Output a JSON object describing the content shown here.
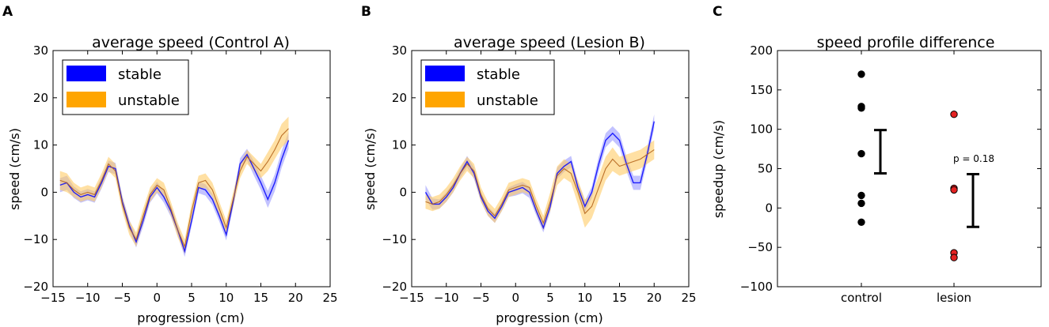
{
  "chart_data": [
    {
      "panel_label": "A",
      "type": "line",
      "title": "average speed (Control A)",
      "xlabel": "progression (cm)",
      "ylabel": "speed (cm/s)",
      "xlim": [
        -15,
        25
      ],
      "ylim": [
        -20,
        30
      ],
      "xticks": [
        -15,
        -10,
        -5,
        0,
        5,
        10,
        15,
        20,
        25
      ],
      "yticks": [
        -20,
        -10,
        0,
        10,
        20,
        30
      ],
      "legend_position": "top-left",
      "series": [
        {
          "name": "stable",
          "color": "#0000ff",
          "band_color": "#9999ff",
          "x": [
            -14,
            -13,
            -12,
            -11,
            -10,
            -9,
            -8,
            -7,
            -6,
            -5,
            -4,
            -3,
            -2,
            -1,
            0,
            1,
            2,
            3,
            4,
            5,
            6,
            7,
            8,
            9,
            10,
            11,
            12,
            13,
            14,
            15,
            16,
            17,
            18,
            19
          ],
          "y": [
            1.5,
            2,
            0,
            -1,
            -0.5,
            -1,
            2,
            5.5,
            5,
            -2,
            -7,
            -10.5,
            -6,
            -1,
            1,
            -1,
            -4,
            -8,
            -12.5,
            -6,
            1,
            0.5,
            -1.5,
            -5,
            -9,
            -2,
            6,
            8,
            5,
            2,
            -1.5,
            2,
            7,
            11
          ],
          "err": [
            1.5,
            1.5,
            1.2,
            1.2,
            1.2,
            1.2,
            1.2,
            1.2,
            1.2,
            1.2,
            1.2,
            1.2,
            1.2,
            1.2,
            1.2,
            1.2,
            1.2,
            1.2,
            1.2,
            1.2,
            1.2,
            1.2,
            1.2,
            1.2,
            1.2,
            1.2,
            1.2,
            1.2,
            1.5,
            1.5,
            1.8,
            1.8,
            1.8,
            1.8
          ]
        },
        {
          "name": "unstable",
          "color": "#ffa500",
          "band_color": "#ffcc66",
          "x": [
            -14,
            -13,
            -12,
            -11,
            -10,
            -9,
            -8,
            -7,
            -6,
            -5,
            -4,
            -3,
            -2,
            -1,
            0,
            1,
            2,
            3,
            4,
            5,
            6,
            7,
            8,
            9,
            10,
            11,
            12,
            13,
            14,
            15,
            16,
            17,
            18,
            19
          ],
          "y": [
            2.5,
            2,
            0.5,
            -0.5,
            0,
            -0.5,
            2.5,
            6,
            4.5,
            -2.5,
            -7.5,
            -10,
            -5,
            -0.5,
            1.5,
            0.5,
            -3.5,
            -8,
            -11.5,
            -4,
            2,
            2.5,
            0.5,
            -3.5,
            -7.5,
            -1.5,
            4.5,
            7.5,
            6,
            4.5,
            6.5,
            9,
            12,
            13.5
          ],
          "err": [
            2,
            2,
            1.5,
            1.5,
            1.5,
            1.5,
            1.5,
            1.5,
            1.5,
            1.5,
            1.5,
            1.5,
            1.5,
            1.5,
            1.5,
            1.5,
            1.5,
            1.5,
            1.5,
            1.5,
            1.5,
            1.5,
            1.5,
            1.5,
            1.5,
            1.5,
            1.5,
            1.5,
            1.5,
            1.5,
            2,
            2,
            2.5,
            2.5
          ]
        }
      ]
    },
    {
      "panel_label": "B",
      "type": "line",
      "title": "average speed (Lesion B)",
      "xlabel": "progression (cm)",
      "ylabel": "speed (cm/s)",
      "xlim": [
        -15,
        25
      ],
      "ylim": [
        -20,
        30
      ],
      "xticks": [
        -15,
        -10,
        -5,
        0,
        5,
        10,
        15,
        20,
        25
      ],
      "yticks": [
        -20,
        -10,
        0,
        10,
        20,
        30
      ],
      "legend_position": "top-left",
      "series": [
        {
          "name": "stable",
          "color": "#0000ff",
          "band_color": "#9999ff",
          "x": [
            -13,
            -12,
            -11,
            -10,
            -9,
            -8,
            -7,
            -6,
            -5,
            -4,
            -3,
            -2,
            -1,
            0,
            1,
            2,
            3,
            4,
            5,
            6,
            7,
            8,
            9,
            10,
            11,
            12,
            13,
            14,
            15,
            16,
            17,
            18,
            19,
            20
          ],
          "y": [
            0,
            -2.5,
            -2.5,
            -1,
            1,
            4,
            6.5,
            4,
            -1,
            -4,
            -5.5,
            -3,
            0,
            0.5,
            1,
            0,
            -4,
            -7.5,
            -3,
            4,
            5.5,
            6.5,
            1,
            -3,
            0,
            6,
            11,
            12.5,
            11,
            6,
            2,
            2,
            8,
            15
          ],
          "err": [
            1.5,
            1.2,
            1,
            1,
            1,
            1,
            1.2,
            1.2,
            1,
            1,
            1,
            1,
            1,
            1.2,
            1.2,
            1.2,
            1,
            1,
            1.2,
            1.2,
            1.2,
            1.2,
            1.2,
            1.2,
            1.2,
            1.5,
            1.5,
            1.5,
            1.5,
            1.5,
            1.5,
            1.5,
            1.5,
            1.5
          ]
        },
        {
          "name": "unstable",
          "color": "#ffa500",
          "band_color": "#ffcc66",
          "x": [
            -13,
            -12,
            -11,
            -10,
            -9,
            -8,
            -7,
            -6,
            -5,
            -4,
            -3,
            -2,
            -1,
            0,
            1,
            2,
            3,
            4,
            5,
            6,
            7,
            8,
            9,
            10,
            11,
            12,
            13,
            14,
            15,
            16,
            17,
            18,
            19,
            20
          ],
          "y": [
            -2,
            -2.5,
            -2,
            -0.5,
            1.5,
            4,
            6,
            4.5,
            -0.5,
            -3.5,
            -5,
            -2.5,
            0.5,
            1,
            1.5,
            1,
            -3,
            -6.5,
            -2,
            3.5,
            5,
            4,
            0,
            -4.5,
            -3,
            1,
            5,
            7,
            5.5,
            6,
            6.5,
            7,
            8,
            9
          ],
          "err": [
            1.5,
            1.5,
            1.5,
            1.5,
            1.5,
            1.5,
            1.5,
            1.5,
            1.5,
            1.5,
            1.5,
            1.5,
            1.5,
            1.5,
            1.5,
            1.5,
            1.5,
            1.5,
            2,
            2,
            2,
            2,
            2.5,
            3,
            2.5,
            2.5,
            2.5,
            2.5,
            2,
            2,
            2,
            2,
            2,
            2
          ]
        }
      ]
    },
    {
      "panel_label": "C",
      "type": "scatter",
      "title": "speed profile difference",
      "xlabel": "",
      "ylabel": "speedup (cm/s)",
      "categories": [
        "control",
        "lesion"
      ],
      "ylim": [
        -100,
        200
      ],
      "yticks": [
        -100,
        -50,
        0,
        50,
        100,
        150,
        200
      ],
      "groups": [
        {
          "name": "control",
          "color": "#000000",
          "points": [
            170,
            129,
            127,
            69,
            16,
            6,
            -18
          ],
          "error_bar": [
            44,
            99
          ]
        },
        {
          "name": "lesion",
          "color": "#e32222",
          "points": [
            119,
            25,
            23,
            -57,
            -63
          ],
          "error_bar": [
            -24,
            43
          ]
        }
      ],
      "annotation": "p = 0.18"
    }
  ]
}
